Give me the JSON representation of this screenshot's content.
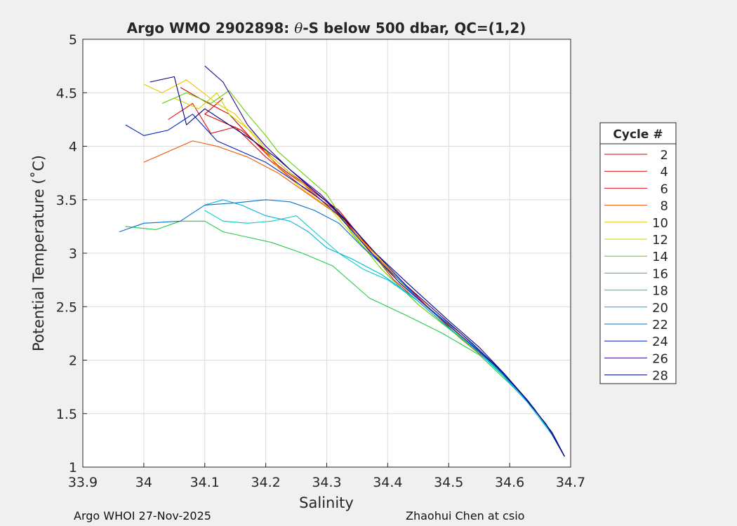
{
  "chart_data": {
    "type": "line",
    "title_prefix": "Argo WMO 2902898: ",
    "title_theta": "θ",
    "title_suffix": "-S below 500 dbar,  QC=(1,2)",
    "xlabel": "Salinity",
    "ylabel": "Potential Temperature (˚C)",
    "xlim": [
      33.9,
      34.7
    ],
    "ylim": [
      1,
      5
    ],
    "xticks": [
      "33.9",
      "34",
      "34.1",
      "34.2",
      "34.3",
      "34.4",
      "34.5",
      "34.6",
      "34.7"
    ],
    "yticks": [
      "1",
      "1.5",
      "2",
      "2.5",
      "3",
      "3.5",
      "4",
      "4.5",
      "5"
    ],
    "grid": true,
    "legend_title": "Cycle #",
    "legend_position": "right",
    "series": [
      {
        "name": "2",
        "color": "#cc0000",
        "values": [
          [
            34.06,
            4.55
          ],
          [
            34.1,
            4.42
          ],
          [
            34.14,
            4.3
          ],
          [
            34.18,
            4.05
          ],
          [
            34.22,
            3.82
          ],
          [
            34.26,
            3.65
          ],
          [
            34.32,
            3.4
          ],
          [
            34.37,
            3.05
          ],
          [
            34.42,
            2.72
          ],
          [
            34.48,
            2.42
          ],
          [
            34.52,
            2.2
          ],
          [
            34.58,
            1.92
          ],
          [
            34.62,
            1.68
          ],
          [
            34.66,
            1.4
          ],
          [
            34.69,
            1.1
          ]
        ]
      },
      {
        "name": "4",
        "color": "#dd0000",
        "values": [
          [
            34.13,
            4.45
          ],
          [
            34.1,
            4.3
          ],
          [
            34.16,
            4.15
          ],
          [
            34.2,
            3.95
          ],
          [
            34.24,
            3.75
          ],
          [
            34.28,
            3.58
          ],
          [
            34.32,
            3.38
          ],
          [
            34.37,
            3.02
          ],
          [
            34.43,
            2.7
          ],
          [
            34.48,
            2.42
          ],
          [
            34.53,
            2.18
          ],
          [
            34.58,
            1.93
          ],
          [
            34.62,
            1.68
          ],
          [
            34.66,
            1.4
          ],
          [
            34.69,
            1.1
          ]
        ]
      },
      {
        "name": "6",
        "color": "#e81010",
        "values": [
          [
            34.04,
            4.25
          ],
          [
            34.08,
            4.4
          ],
          [
            34.11,
            4.12
          ],
          [
            34.15,
            4.18
          ],
          [
            34.2,
            3.9
          ],
          [
            34.26,
            3.62
          ],
          [
            34.31,
            3.42
          ],
          [
            34.36,
            3.1
          ],
          [
            34.41,
            2.75
          ],
          [
            34.47,
            2.45
          ],
          [
            34.52,
            2.2
          ],
          [
            34.58,
            1.93
          ],
          [
            34.62,
            1.68
          ],
          [
            34.66,
            1.4
          ],
          [
            34.69,
            1.1
          ]
        ]
      },
      {
        "name": "8",
        "color": "#ee5500",
        "values": [
          [
            34.0,
            3.85
          ],
          [
            34.04,
            3.95
          ],
          [
            34.08,
            4.05
          ],
          [
            34.12,
            4.0
          ],
          [
            34.17,
            3.9
          ],
          [
            34.22,
            3.75
          ],
          [
            34.27,
            3.55
          ],
          [
            34.32,
            3.35
          ],
          [
            34.37,
            3.05
          ],
          [
            34.42,
            2.72
          ],
          [
            34.48,
            2.43
          ],
          [
            34.53,
            2.18
          ],
          [
            34.58,
            1.93
          ],
          [
            34.62,
            1.68
          ],
          [
            34.66,
            1.4
          ],
          [
            34.69,
            1.1
          ]
        ]
      },
      {
        "name": "10",
        "color": "#f0c000",
        "values": [
          [
            34.0,
            4.58
          ],
          [
            34.03,
            4.5
          ],
          [
            34.07,
            4.62
          ],
          [
            34.12,
            4.4
          ],
          [
            34.15,
            4.3
          ],
          [
            34.18,
            4.1
          ],
          [
            34.22,
            3.8
          ],
          [
            34.26,
            3.6
          ],
          [
            34.31,
            3.4
          ],
          [
            34.36,
            3.1
          ],
          [
            34.42,
            2.75
          ],
          [
            34.48,
            2.45
          ],
          [
            34.53,
            2.2
          ],
          [
            34.58,
            1.93
          ],
          [
            34.62,
            1.68
          ],
          [
            34.66,
            1.4
          ],
          [
            34.69,
            1.1
          ]
        ]
      },
      {
        "name": "12",
        "color": "#c8d800",
        "values": [
          [
            34.05,
            4.45
          ],
          [
            34.09,
            4.35
          ],
          [
            34.12,
            4.5
          ],
          [
            34.14,
            4.3
          ],
          [
            34.18,
            4.12
          ],
          [
            34.21,
            3.9
          ],
          [
            34.25,
            3.7
          ],
          [
            34.3,
            3.45
          ],
          [
            34.35,
            3.12
          ],
          [
            34.41,
            2.78
          ],
          [
            34.47,
            2.47
          ],
          [
            34.52,
            2.22
          ],
          [
            34.58,
            1.93
          ],
          [
            34.62,
            1.68
          ],
          [
            34.66,
            1.4
          ],
          [
            34.69,
            1.1
          ]
        ]
      },
      {
        "name": "14",
        "color": "#66cc00",
        "values": [
          [
            34.03,
            4.4
          ],
          [
            34.07,
            4.5
          ],
          [
            34.11,
            4.4
          ],
          [
            34.14,
            4.52
          ],
          [
            34.17,
            4.3
          ],
          [
            34.2,
            4.1
          ],
          [
            34.22,
            3.95
          ],
          [
            34.25,
            3.8
          ],
          [
            34.3,
            3.55
          ],
          [
            34.34,
            3.2
          ],
          [
            34.39,
            2.85
          ],
          [
            34.45,
            2.52
          ],
          [
            34.51,
            2.25
          ],
          [
            34.57,
            1.97
          ],
          [
            34.62,
            1.68
          ],
          [
            34.66,
            1.4
          ],
          [
            34.69,
            1.1
          ]
        ]
      },
      {
        "name": "16",
        "color": "#22cc44",
        "values": [
          [
            33.97,
            3.25
          ],
          [
            34.02,
            3.22
          ],
          [
            34.06,
            3.3
          ],
          [
            34.1,
            3.3
          ],
          [
            34.13,
            3.2
          ],
          [
            34.17,
            3.15
          ],
          [
            34.21,
            3.1
          ],
          [
            34.26,
            3.0
          ],
          [
            34.31,
            2.88
          ],
          [
            34.37,
            2.58
          ],
          [
            34.43,
            2.42
          ],
          [
            34.49,
            2.25
          ],
          [
            34.55,
            2.05
          ],
          [
            34.6,
            1.78
          ],
          [
            34.64,
            1.55
          ],
          [
            34.67,
            1.3
          ],
          [
            34.69,
            1.1
          ]
        ]
      },
      {
        "name": "18",
        "color": "#00d0c0",
        "values": [
          [
            34.1,
            3.4
          ],
          [
            34.13,
            3.3
          ],
          [
            34.17,
            3.28
          ],
          [
            34.21,
            3.3
          ],
          [
            34.25,
            3.35
          ],
          [
            34.28,
            3.2
          ],
          [
            34.32,
            3.0
          ],
          [
            34.36,
            2.85
          ],
          [
            34.4,
            2.75
          ],
          [
            34.45,
            2.55
          ],
          [
            34.5,
            2.3
          ],
          [
            34.55,
            2.08
          ],
          [
            34.6,
            1.8
          ],
          [
            34.64,
            1.55
          ],
          [
            34.67,
            1.3
          ],
          [
            34.69,
            1.1
          ]
        ]
      },
      {
        "name": "20",
        "color": "#00b4e0",
        "values": [
          [
            34.1,
            3.45
          ],
          [
            34.13,
            3.5
          ],
          [
            34.16,
            3.45
          ],
          [
            34.2,
            3.35
          ],
          [
            34.24,
            3.3
          ],
          [
            34.27,
            3.2
          ],
          [
            34.3,
            3.05
          ],
          [
            34.34,
            2.95
          ],
          [
            34.39,
            2.8
          ],
          [
            34.44,
            2.6
          ],
          [
            34.49,
            2.35
          ],
          [
            34.54,
            2.12
          ],
          [
            34.59,
            1.85
          ],
          [
            34.63,
            1.6
          ],
          [
            34.67,
            1.3
          ],
          [
            34.69,
            1.1
          ]
        ]
      },
      {
        "name": "22",
        "color": "#0070d0",
        "values": [
          [
            33.96,
            3.2
          ],
          [
            34.0,
            3.28
          ],
          [
            34.06,
            3.3
          ],
          [
            34.1,
            3.45
          ],
          [
            34.15,
            3.47
          ],
          [
            34.2,
            3.5
          ],
          [
            34.24,
            3.48
          ],
          [
            34.28,
            3.4
          ],
          [
            34.32,
            3.28
          ],
          [
            34.36,
            3.05
          ],
          [
            34.41,
            2.8
          ],
          [
            34.46,
            2.52
          ],
          [
            34.52,
            2.25
          ],
          [
            34.58,
            1.93
          ],
          [
            34.62,
            1.68
          ],
          [
            34.66,
            1.4
          ],
          [
            34.69,
            1.1
          ]
        ]
      },
      {
        "name": "24",
        "color": "#0020c0",
        "values": [
          [
            33.97,
            4.2
          ],
          [
            34.0,
            4.1
          ],
          [
            34.04,
            4.15
          ],
          [
            34.08,
            4.3
          ],
          [
            34.12,
            4.05
          ],
          [
            34.16,
            3.95
          ],
          [
            34.2,
            3.85
          ],
          [
            34.24,
            3.7
          ],
          [
            34.28,
            3.55
          ],
          [
            34.32,
            3.35
          ],
          [
            34.37,
            3.02
          ],
          [
            34.42,
            2.72
          ],
          [
            34.48,
            2.42
          ],
          [
            34.53,
            2.18
          ],
          [
            34.58,
            1.93
          ],
          [
            34.62,
            1.68
          ],
          [
            34.66,
            1.4
          ],
          [
            34.69,
            1.1
          ]
        ]
      },
      {
        "name": "26",
        "color": "#2a0090",
        "values": [
          [
            34.1,
            4.75
          ],
          [
            34.13,
            4.6
          ],
          [
            34.15,
            4.4
          ],
          [
            34.17,
            4.2
          ],
          [
            34.2,
            4.0
          ],
          [
            34.24,
            3.78
          ],
          [
            34.29,
            3.55
          ],
          [
            34.33,
            3.32
          ],
          [
            34.38,
            3.0
          ],
          [
            34.43,
            2.7
          ],
          [
            34.49,
            2.4
          ],
          [
            34.54,
            2.15
          ],
          [
            34.59,
            1.88
          ],
          [
            34.63,
            1.62
          ],
          [
            34.67,
            1.32
          ],
          [
            34.69,
            1.1
          ]
        ]
      },
      {
        "name": "28",
        "color": "#000080",
        "values": [
          [
            34.01,
            4.6
          ],
          [
            34.05,
            4.65
          ],
          [
            34.07,
            4.2
          ],
          [
            34.1,
            4.35
          ],
          [
            34.14,
            4.2
          ],
          [
            34.18,
            4.05
          ],
          [
            34.22,
            3.88
          ],
          [
            34.26,
            3.68
          ],
          [
            34.3,
            3.48
          ],
          [
            34.34,
            3.25
          ],
          [
            34.38,
            3.0
          ],
          [
            34.44,
            2.68
          ],
          [
            34.5,
            2.37
          ],
          [
            34.55,
            2.12
          ],
          [
            34.59,
            1.88
          ],
          [
            34.63,
            1.62
          ],
          [
            34.67,
            1.32
          ],
          [
            34.69,
            1.1
          ]
        ]
      }
    ]
  },
  "footer": {
    "left": "Argo WHOI 27-Nov-2025",
    "right": "Zhaohui Chen at csio"
  }
}
